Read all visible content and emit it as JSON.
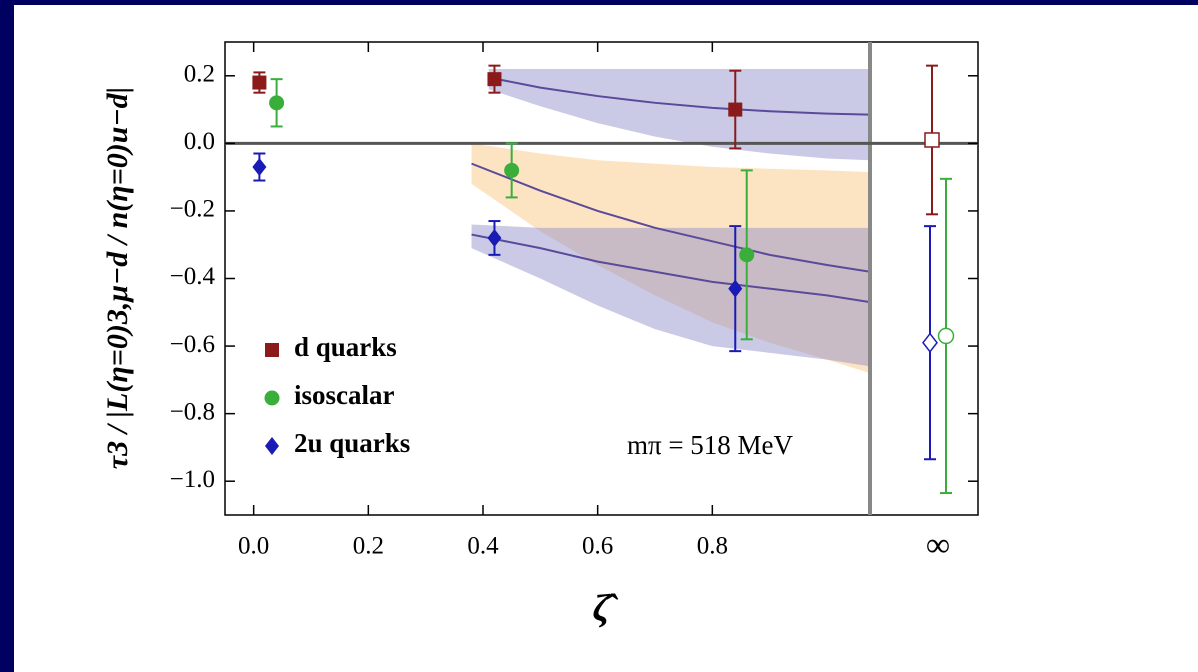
{
  "chart_data": {
    "type": "scatter",
    "ylabel": "τ3 / |L(η=0)3,μ−d / n(η=0)u−d|",
    "xlabel": "ζ̂",
    "annotation": "mπ = 518 MeV",
    "infinity_label": "∞",
    "xlim": [
      -0.05,
      1.075
    ],
    "ylim": [
      -1.1,
      0.3
    ],
    "xticks": [
      {
        "value": 0,
        "label": "0.0"
      },
      0.2,
      0.4,
      0.6,
      0.8
    ],
    "yticks": [
      0.2,
      {
        "value": 0,
        "label": "0.0"
      },
      {
        "value": -0.2,
        "label": "−0.2"
      },
      {
        "value": -0.4,
        "label": "−0.4"
      },
      {
        "value": -0.6,
        "label": "−0.6"
      },
      {
        "value": -0.8,
        "label": "−0.8"
      },
      {
        "value": -1.0,
        "label": "−1.0"
      }
    ],
    "series": [
      {
        "name": "d quarks",
        "color": "#8b1a1a",
        "marker": "square",
        "x": [
          0.01,
          0.42,
          0.84
        ],
        "values": [
          0.18,
          0.19,
          0.1
        ],
        "errors": [
          0.03,
          0.04,
          0.115
        ],
        "infinity_value": 0.01,
        "infinity_error": 0.22
      },
      {
        "name": "isoscalar",
        "color": "#3aae3a",
        "marker": "circle",
        "x": [
          0.04,
          0.45,
          0.86
        ],
        "values": [
          0.12,
          -0.08,
          -0.33
        ],
        "errors": [
          0.07,
          0.08,
          0.25
        ],
        "infinity_value": -0.57,
        "infinity_error": 0.465
      },
      {
        "name": "2u quarks",
        "color": "#1a1ab4",
        "marker": "diamond",
        "x": [
          0.01,
          0.42,
          0.84
        ],
        "values": [
          -0.07,
          -0.28,
          -0.43
        ],
        "errors": [
          0.04,
          0.05,
          0.185
        ],
        "infinity_value": -0.59,
        "infinity_error": 0.345
      }
    ],
    "bands": [
      {
        "color": "#8a8ac8",
        "x": [
          0.41,
          0.5,
          0.6,
          0.7,
          0.8,
          0.9,
          1.0,
          1.075
        ],
        "upper": [
          0.22,
          0.22,
          0.22,
          0.22,
          0.22,
          0.22,
          0.22,
          0.22
        ],
        "lower": [
          0.16,
          0.11,
          0.06,
          0.02,
          -0.01,
          -0.03,
          -0.045,
          -0.05
        ],
        "fit": [
          0.195,
          0.165,
          0.14,
          0.12,
          0.105,
          0.095,
          0.088,
          0.085
        ]
      },
      {
        "color": "#f9c47a",
        "x": [
          0.38,
          0.5,
          0.6,
          0.7,
          0.8,
          0.9,
          1.0,
          1.075
        ],
        "upper": [
          0.0,
          -0.03,
          -0.05,
          -0.06,
          -0.07,
          -0.075,
          -0.08,
          -0.085
        ],
        "lower": [
          -0.12,
          -0.26,
          -0.36,
          -0.45,
          -0.53,
          -0.59,
          -0.64,
          -0.68
        ],
        "fit": [
          -0.06,
          -0.14,
          -0.2,
          -0.25,
          -0.29,
          -0.33,
          -0.36,
          -0.38
        ]
      },
      {
        "color": "#8a8ac8",
        "x": [
          0.38,
          0.5,
          0.6,
          0.7,
          0.8,
          0.9,
          1.0,
          1.075
        ],
        "upper": [
          -0.24,
          -0.25,
          -0.25,
          -0.25,
          -0.25,
          -0.25,
          -0.25,
          -0.25
        ],
        "lower": [
          -0.31,
          -0.4,
          -0.48,
          -0.55,
          -0.6,
          -0.62,
          -0.64,
          -0.66
        ],
        "fit": [
          -0.27,
          -0.31,
          -0.35,
          -0.38,
          -0.41,
          -0.43,
          -0.45,
          -0.47
        ]
      }
    ],
    "fit_color": "#5a4a9a"
  }
}
